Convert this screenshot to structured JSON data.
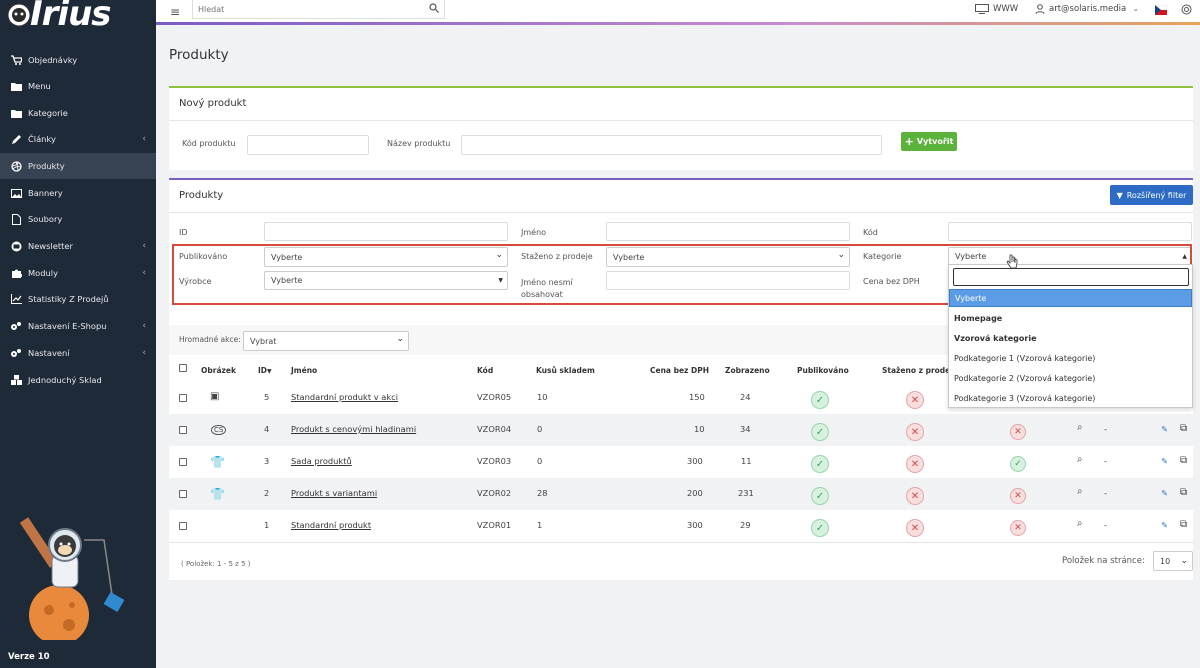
{
  "sidebar": {
    "logo": "Irius",
    "items": [
      {
        "label": "Objednávky",
        "icon": "cart-icon",
        "chevron": false
      },
      {
        "label": "Menu",
        "icon": "folder-icon",
        "chevron": false
      },
      {
        "label": "Kategorie",
        "icon": "folder-icon",
        "chevron": false
      },
      {
        "label": "Články",
        "icon": "pencil-icon",
        "chevron": true
      },
      {
        "label": "Produkty",
        "icon": "dribbble-icon",
        "chevron": false,
        "active": true
      },
      {
        "label": "Bannery",
        "icon": "image-icon",
        "chevron": false
      },
      {
        "label": "Soubory",
        "icon": "file-icon",
        "chevron": false
      },
      {
        "label": "Newsletter",
        "icon": "mail-icon",
        "chevron": true
      },
      {
        "label": "Moduly",
        "icon": "puzzle-icon",
        "chevron": true
      },
      {
        "label": "Statistiky Z Prodejů",
        "icon": "chart-icon",
        "chevron": false
      },
      {
        "label": "Nastavení E-Shopu",
        "icon": "gears-icon",
        "chevron": true
      },
      {
        "label": "Nastavení",
        "icon": "gears-icon",
        "chevron": true
      },
      {
        "label": "Jednoduchý Sklad",
        "icon": "boxes-icon",
        "chevron": false
      }
    ],
    "version": "Verze 10"
  },
  "topbar": {
    "search_placeholder": "Hledat",
    "www_label": "WWW",
    "user_label": "art@solaris.media"
  },
  "page": {
    "title": "Produkty"
  },
  "new_product": {
    "title": "Nový produkt",
    "code_label": "Kód produktu",
    "name_label": "Název produktu",
    "create_label": "Vytvořit"
  },
  "products": {
    "title": "Produkty",
    "filter_button": "Rozšířený filter",
    "filters": {
      "id_label": "ID",
      "name_label": "Jméno",
      "code_label": "Kód",
      "published_label": "Publikováno",
      "published_value": "Vyberte",
      "withdrawn_label": "Staženo z prodeje",
      "withdrawn_value": "Vyberte",
      "category_label": "Kategorie",
      "category_value": "Vyberte",
      "producer_label": "Výrobce",
      "producer_value": "Vyberte",
      "exclude_label_1": "Jméno nesmí",
      "exclude_label_2": "obsahovat",
      "price_label": "Cena bez DPH"
    },
    "bulk": {
      "label": "Hromadné akce:",
      "value": "Vybrat"
    },
    "columns": [
      "Obrázek",
      "ID",
      "Jméno",
      "Kód",
      "Kusů skladem",
      "Cena bez DPH",
      "Zobrazeno",
      "Publikováno",
      "Staženo z prodeje"
    ],
    "rows": [
      {
        "id": "5",
        "name": "Standardní produkt v akci",
        "code": "VZOR05",
        "stock": "10",
        "price": "150",
        "views": "24",
        "img": "box",
        "pub": true,
        "withdrawn": false,
        "third": null
      },
      {
        "id": "4",
        "name": "Produkt s cenovými hladinami",
        "code": "VZOR04",
        "stock": "0",
        "price": "10",
        "views": "34",
        "img": "cs",
        "pub": true,
        "withdrawn": false,
        "third": false
      },
      {
        "id": "3",
        "name": "Sada produktů",
        "code": "VZOR03",
        "stock": "0",
        "price": "300",
        "views": "11",
        "img": "shirt",
        "pub": true,
        "withdrawn": false,
        "third": true
      },
      {
        "id": "2",
        "name": "Produkt s variantami",
        "code": "VZOR02",
        "stock": "28",
        "price": "200",
        "views": "231",
        "img": "shirt",
        "pub": true,
        "withdrawn": false,
        "third": false
      },
      {
        "id": "1",
        "name": "Standardní produkt",
        "code": "VZOR01",
        "stock": "1",
        "price": "300",
        "views": "29",
        "img": "",
        "pub": true,
        "withdrawn": false,
        "third": false
      }
    ],
    "dash": "-",
    "count_text": "( Položek: 1 - 5 z 5 )",
    "pager_label": "Položek na stránce:",
    "pager_value": "10"
  },
  "dropdown": {
    "selected": "Vyberte",
    "options": [
      {
        "label": "Homepage",
        "bold": true
      },
      {
        "label": "Vzorová kategorie",
        "bold": true
      },
      {
        "label": "Podkategorie 1 (Vzorová kategorie)",
        "bold": false
      },
      {
        "label": "Podkategorie 2 (Vzorová kategorie)",
        "bold": false
      },
      {
        "label": "Podkategorie 3 (Vzorová kategorie)",
        "bold": false
      }
    ]
  }
}
